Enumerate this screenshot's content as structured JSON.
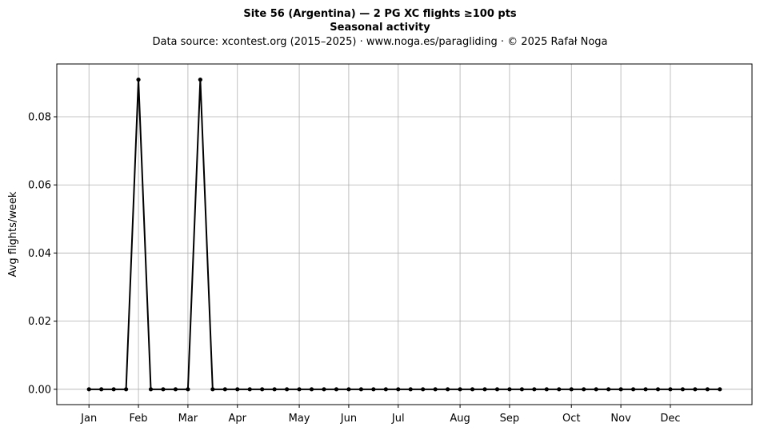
{
  "chart_data": {
    "type": "line",
    "title": "Site 56 (Argentina)  —  2 PG XC flights ≥100 pts",
    "subtitle_bold": "Seasonal activity",
    "subtitle": "Data source: xcontest.org (2015–2025)  ·  www.noga.es/paragliding  ·  © 2025 Rafał Noga",
    "xlabel": "",
    "ylabel": "Avg flights/week",
    "ylim": [
      -0.0045,
      0.0955
    ],
    "xlim": [
      -2.6,
      53.6
    ],
    "grid": true,
    "yticks": [
      0.0,
      0.02,
      0.04,
      0.06,
      0.08
    ],
    "ytick_labels": [
      "0.00",
      "0.02",
      "0.04",
      "0.06",
      "0.08"
    ],
    "xticks": [
      {
        "week": 0,
        "label": "Jan"
      },
      {
        "week": 4,
        "label": "Feb"
      },
      {
        "week": 8,
        "label": "Mar"
      },
      {
        "week": 12,
        "label": "Apr"
      },
      {
        "week": 17,
        "label": "May"
      },
      {
        "week": 21,
        "label": "Jun"
      },
      {
        "week": 25,
        "label": "Jul"
      },
      {
        "week": 30,
        "label": "Aug"
      },
      {
        "week": 34,
        "label": "Sep"
      },
      {
        "week": 39,
        "label": "Oct"
      },
      {
        "week": 43,
        "label": "Nov"
      },
      {
        "week": 47,
        "label": "Dec"
      }
    ],
    "x": [
      0,
      1,
      2,
      3,
      4,
      5,
      6,
      7,
      8,
      9,
      10,
      11,
      12,
      13,
      14,
      15,
      16,
      17,
      18,
      19,
      20,
      21,
      22,
      23,
      24,
      25,
      26,
      27,
      28,
      29,
      30,
      31,
      32,
      33,
      34,
      35,
      36,
      37,
      38,
      39,
      40,
      41,
      42,
      43,
      44,
      45,
      46,
      47,
      48,
      49,
      50,
      51
    ],
    "values": [
      0,
      0,
      0,
      0,
      0.0909,
      0,
      0,
      0,
      0,
      0.0909,
      0,
      0,
      0,
      0,
      0,
      0,
      0,
      0,
      0,
      0,
      0,
      0,
      0,
      0,
      0,
      0,
      0,
      0,
      0,
      0,
      0,
      0,
      0,
      0,
      0,
      0,
      0,
      0,
      0,
      0,
      0,
      0,
      0,
      0,
      0,
      0,
      0,
      0,
      0,
      0,
      0,
      0
    ]
  }
}
